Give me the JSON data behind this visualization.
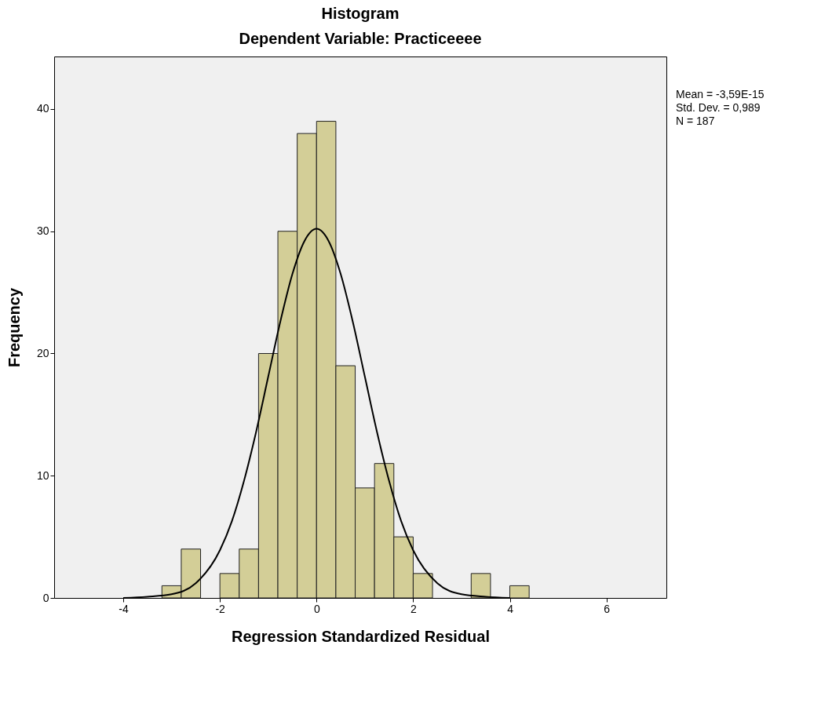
{
  "chart_data": {
    "type": "histogram",
    "title": "Histogram",
    "subtitle": "Dependent Variable: Practiceeee",
    "xlabel": "Regression Standardized Residual",
    "ylabel": "Frequency",
    "xlim": [
      -5.43,
      7.24
    ],
    "ylim": [
      0,
      44.3
    ],
    "xticks": [
      -4,
      -2,
      0,
      2,
      4,
      6
    ],
    "yticks": [
      0,
      10,
      20,
      30,
      40
    ],
    "annotations": [
      "Mean = -3,59E-15",
      "Std. Dev. = 0,989",
      "N = 187"
    ],
    "series": [
      {
        "type": "histogram",
        "color": "#d3ce97",
        "bins": [
          -3.2,
          -2.8,
          -2.4,
          -2.0,
          -1.6,
          -1.2,
          -0.8,
          -0.4,
          0,
          0.4,
          0.8,
          1.2,
          1.6,
          2.0,
          2.4,
          2.8,
          3.2,
          3.6,
          4.0,
          4.4
        ],
        "values": [
          1,
          4,
          0,
          2,
          4,
          20,
          30,
          38,
          39,
          19,
          9,
          11,
          5,
          2,
          0,
          0,
          2,
          0,
          1
        ]
      },
      {
        "type": "line",
        "color": "#000000",
        "x": [
          -4,
          -3.5,
          -3,
          -2.5,
          -2,
          -1.75,
          -1.5,
          -1.25,
          -1,
          -0.75,
          -0.5,
          -0.25,
          0,
          0.25,
          0.5,
          0.75,
          1,
          1.25,
          1.5,
          1.75,
          2,
          2.5,
          3,
          3.5,
          4
        ],
        "values": [
          0,
          0.1,
          0.3,
          1.2,
          3.9,
          6.3,
          9.6,
          13.6,
          18.1,
          22.6,
          26.5,
          29.2,
          30.2,
          29.2,
          26.5,
          22.6,
          18.1,
          13.6,
          9.6,
          6.3,
          3.9,
          1.2,
          0.3,
          0.1,
          0
        ]
      }
    ]
  }
}
